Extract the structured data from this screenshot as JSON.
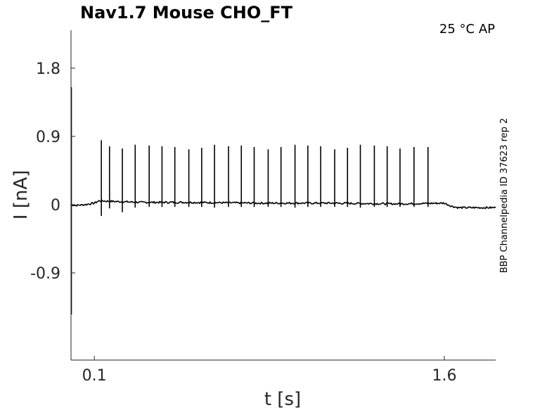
{
  "chart_data": {
    "type": "line",
    "title": "Nav1.7  Mouse  CHO_FT",
    "corner_label": "25 °C  AP",
    "side_label": "BBP Channelpedia ID 37623 rep 2",
    "xlabel": "t [s]",
    "ylabel": "I [nA]",
    "xlim": [
      0.0,
      1.82
    ],
    "ylim": [
      -2.05,
      2.3
    ],
    "xticks": [
      {
        "value": 0.1,
        "label": "0.1"
      },
      {
        "value": 1.6,
        "label": "1.6"
      }
    ],
    "yticks": [
      {
        "value": 1.8,
        "label": "1.8"
      },
      {
        "value": 0.9,
        "label": "0.9"
      },
      {
        "value": 0,
        "label": "0"
      },
      {
        "value": -0.9,
        "label": "-0.9"
      }
    ],
    "grid": false,
    "series": [
      {
        "color": "#000000",
        "baseline": [
          [
            0.0,
            0.0
          ],
          [
            0.02,
            -0.01
          ],
          [
            0.06,
            0.0
          ],
          [
            0.1,
            0.02
          ],
          [
            0.12,
            0.05
          ],
          [
            0.2,
            0.04
          ],
          [
            0.3,
            0.03
          ],
          [
            0.5,
            0.03
          ],
          [
            0.8,
            0.02
          ],
          [
            1.1,
            0.02
          ],
          [
            1.4,
            0.01
          ],
          [
            1.6,
            0.02
          ],
          [
            1.63,
            -0.02
          ],
          [
            1.66,
            -0.04
          ],
          [
            1.7,
            -0.04
          ],
          [
            1.82,
            -0.04
          ]
        ],
        "spikes": [
          {
            "t": 0.13,
            "peak": 0.85,
            "trough": -0.15
          },
          {
            "t": 0.165,
            "peak": 0.77,
            "trough": -0.05
          },
          {
            "t": 0.22,
            "peak": 0.74,
            "trough": -0.1
          },
          {
            "t": 0.275,
            "peak": 0.79,
            "trough": -0.04
          },
          {
            "t": 0.335,
            "peak": 0.78,
            "trough": -0.03
          },
          {
            "t": 0.39,
            "peak": 0.77,
            "trough": -0.03
          },
          {
            "t": 0.445,
            "peak": 0.76,
            "trough": -0.03
          },
          {
            "t": 0.505,
            "peak": 0.73,
            "trough": -0.03
          },
          {
            "t": 0.56,
            "peak": 0.75,
            "trough": -0.03
          },
          {
            "t": 0.615,
            "peak": 0.79,
            "trough": -0.04
          },
          {
            "t": 0.675,
            "peak": 0.77,
            "trough": -0.03
          },
          {
            "t": 0.73,
            "peak": 0.78,
            "trough": -0.03
          },
          {
            "t": 0.785,
            "peak": 0.76,
            "trough": -0.03
          },
          {
            "t": 0.845,
            "peak": 0.73,
            "trough": -0.03
          },
          {
            "t": 0.9,
            "peak": 0.76,
            "trough": -0.03
          },
          {
            "t": 0.96,
            "peak": 0.79,
            "trough": -0.04
          },
          {
            "t": 1.015,
            "peak": 0.78,
            "trough": -0.03
          },
          {
            "t": 1.07,
            "peak": 0.77,
            "trough": -0.03
          },
          {
            "t": 1.13,
            "peak": 0.73,
            "trough": -0.03
          },
          {
            "t": 1.185,
            "peak": 0.75,
            "trough": -0.03
          },
          {
            "t": 1.24,
            "peak": 0.79,
            "trough": -0.04
          },
          {
            "t": 1.3,
            "peak": 0.78,
            "trough": -0.03
          },
          {
            "t": 1.355,
            "peak": 0.77,
            "trough": -0.03
          },
          {
            "t": 1.41,
            "peak": 0.74,
            "trough": -0.03
          },
          {
            "t": 1.47,
            "peak": 0.76,
            "trough": -0.03
          },
          {
            "t": 1.53,
            "peak": 0.76,
            "trough": -0.03
          }
        ],
        "transient": {
          "t": 0.0,
          "peak": 1.55,
          "trough": -1.45
        }
      }
    ]
  }
}
